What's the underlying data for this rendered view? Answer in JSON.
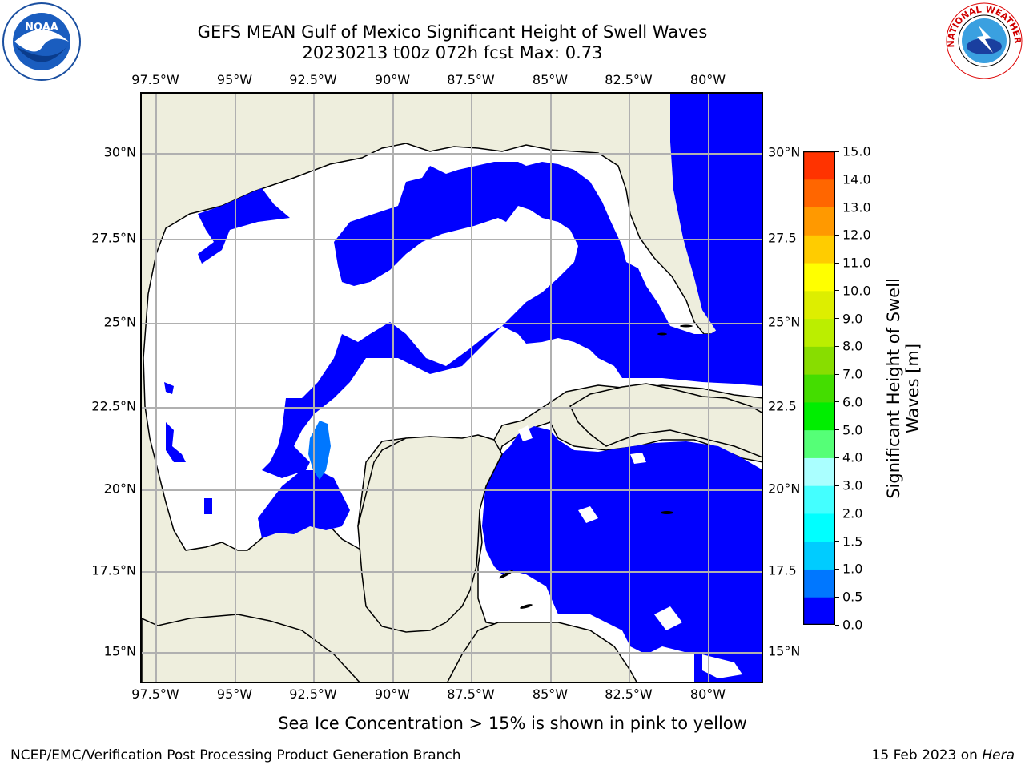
{
  "title": {
    "line1": "GEFS MEAN Gulf of Mexico Significant Height of Swell Waves",
    "line2": "20230213 t00z 072h fcst   Max: 0.73"
  },
  "map": {
    "lon_labels": [
      "97.5°W",
      "95°W",
      "92.5°W",
      "90°W",
      "87.5°W",
      "85°W",
      "82.5°W",
      "80°W"
    ],
    "lat_labels": [
      "30°N",
      "27.5°N",
      "25°N",
      "22.5°N",
      "20°N",
      "17.5°N",
      "15°N"
    ],
    "lat_right_labels": [
      "30°N",
      "27.5",
      "25°N",
      "22.5",
      "20°N",
      "17.5",
      "15°N"
    ],
    "colors": {
      "land": "#eeeedd",
      "sea_low": "#0000ff",
      "sea_mid": "#0077ff",
      "grid": "#b0b0b0"
    }
  },
  "colorbar": {
    "label_line1": "Significant Height of Swell",
    "label_line2": "Waves [m]",
    "ticks": [
      "0.0",
      "0.5",
      "1.0",
      "1.5",
      "2.0",
      "3.0",
      "4.0",
      "5.0",
      "6.0",
      "7.0",
      "8.0",
      "9.0",
      "10.0",
      "11.0",
      "12.0",
      "13.0",
      "14.0",
      "15.0"
    ],
    "colors": [
      "#0000ff",
      "#0077ff",
      "#00ccff",
      "#00ffff",
      "#44ffff",
      "#aaffff",
      "#55ff77",
      "#00ee00",
      "#44dd00",
      "#88dd00",
      "#bbee00",
      "#ddee00",
      "#ffff00",
      "#ffcc00",
      "#ff9900",
      "#ff6600",
      "#ff3300",
      "#ff0000"
    ]
  },
  "logos": {
    "noaa_text": "NOAA",
    "nws_text": "NATIONAL WEATHER SERVICE"
  },
  "footer": {
    "note": "Sea Ice Concentration > 15% is shown in pink to yellow",
    "left": "NCEP/EMC/Verification Post Processing Product Generation Branch",
    "right_prefix": "15 Feb 2023 on ",
    "right_host": "Hera"
  }
}
